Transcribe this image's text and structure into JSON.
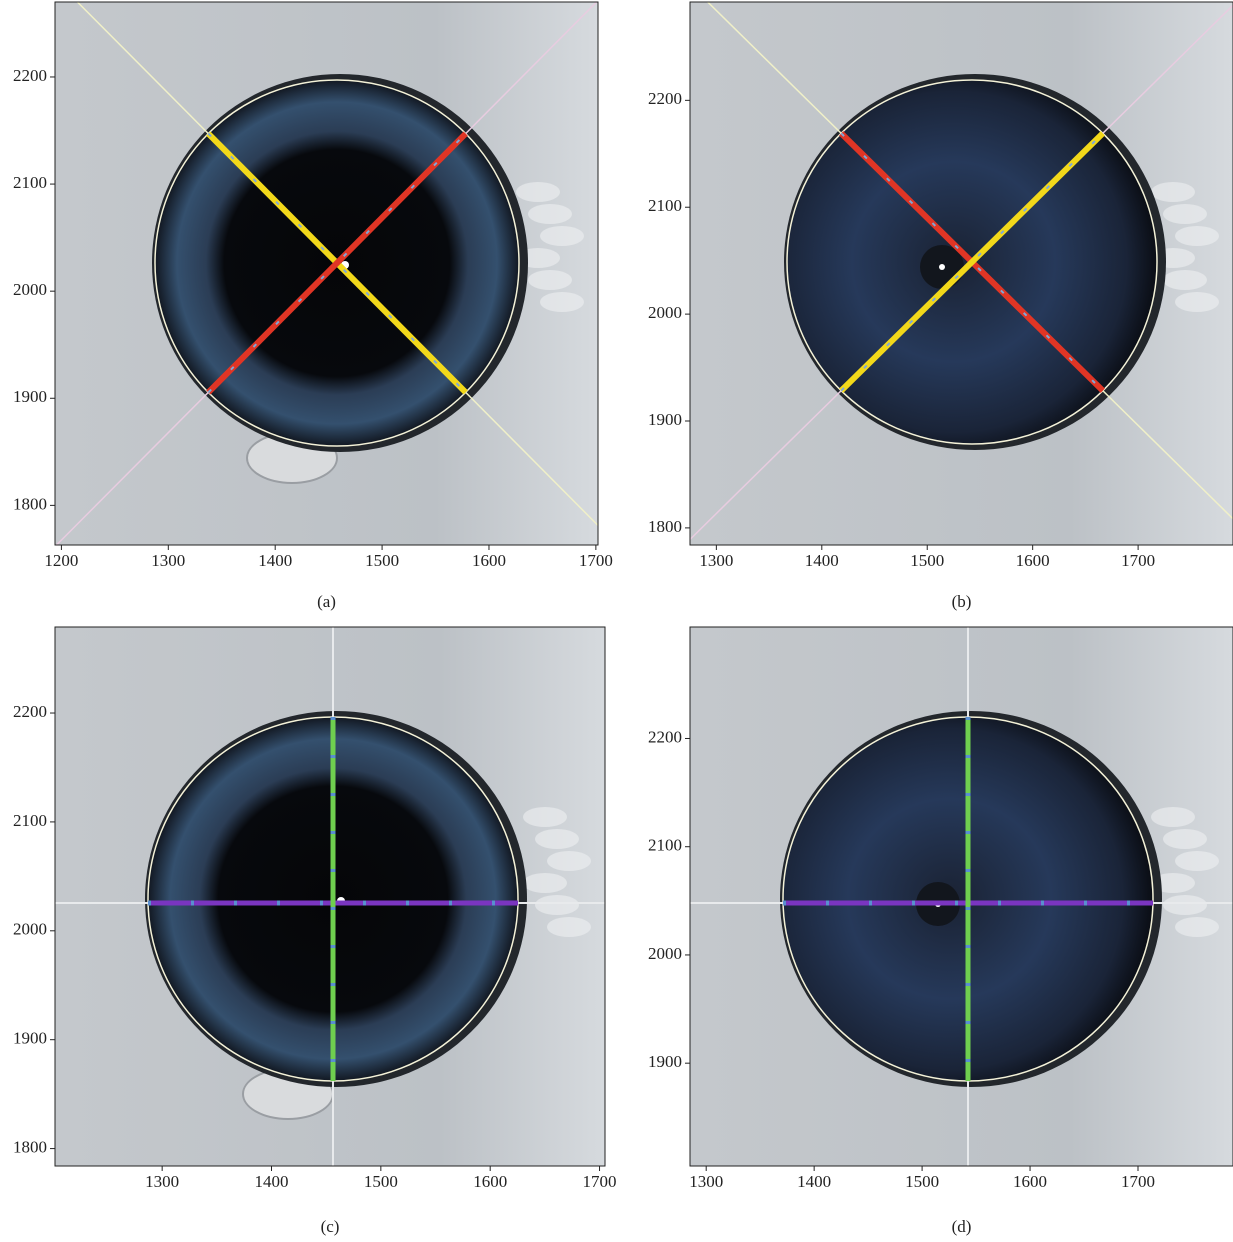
{
  "chart_data": [
    {
      "type": "image",
      "caption": "(a)",
      "xlim": [
        1194,
        1702
      ],
      "ylim": [
        1763,
        2270
      ],
      "xticks": [
        1200,
        1300,
        1400,
        1500,
        1600,
        1700
      ],
      "yticks": [
        1800,
        1900,
        2000,
        2100,
        2200
      ]
    },
    {
      "type": "image",
      "caption": "(b)",
      "xlim": [
        1275,
        1790
      ],
      "ylim": [
        1784,
        2292
      ],
      "xticks": [
        1300,
        1400,
        1500,
        1600,
        1700
      ],
      "yticks": [
        1800,
        1900,
        2000,
        2100,
        2200
      ]
    },
    {
      "type": "image",
      "caption": "(c)",
      "xlim": [
        1202,
        1705
      ],
      "ylim": [
        1784,
        2279
      ],
      "xticks": [
        1300,
        1400,
        1500,
        1600,
        1700
      ],
      "yticks": [
        1800,
        1900,
        2000,
        2100,
        2200
      ]
    },
    {
      "type": "image",
      "caption": "(d)",
      "xlim": [
        1285,
        1788
      ],
      "ylim": [
        1805,
        2303
      ],
      "xticks": [
        1300,
        1400,
        1500,
        1600,
        1700
      ],
      "yticks": [
        1900,
        2000,
        2100,
        2200
      ]
    }
  ]
}
